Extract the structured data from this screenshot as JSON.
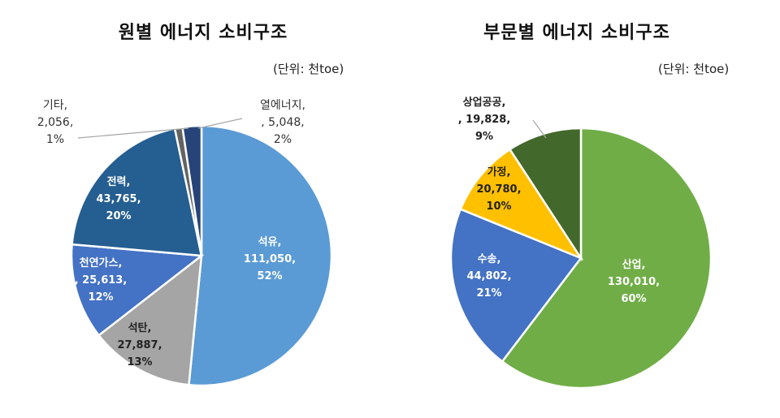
{
  "chart_data": [
    {
      "type": "pie",
      "title": "원별 에너지 소비구조",
      "unit": "(단위: 천toe)",
      "slices": [
        {
          "name": "석유",
          "value": 111050,
          "value_text": "111,050,",
          "percent_text": "52%",
          "color": "#5B9BD5"
        },
        {
          "name": "석탄",
          "value": 27887,
          "value_text": "27,887,",
          "percent_text": "13%",
          "color": "#A5A5A5"
        },
        {
          "name": "천연가스",
          "value": 25613,
          "value_text": ", 25,613,",
          "percent_text": "12%",
          "color": "#4472C4"
        },
        {
          "name": "전력",
          "value": 43765,
          "value_text": "43,765,",
          "percent_text": "20%",
          "color": "#255E91"
        },
        {
          "name": "기타",
          "value": 2056,
          "value_text": "2,056,",
          "percent_text": "1%",
          "color": "#636363"
        },
        {
          "name": "열에너지",
          "value": 5048,
          "value_text": ", 5,048,",
          "percent_text": "2%",
          "color": "#264478"
        }
      ]
    },
    {
      "type": "pie",
      "title": "부문별 에너지 소비구조",
      "unit": "(단위: 천toe)",
      "slices": [
        {
          "name": "산업",
          "value": 130010,
          "value_text": "130,010,",
          "percent_text": "60%",
          "color": "#70AD47"
        },
        {
          "name": "수송",
          "value": 44802,
          "value_text": "44,802,",
          "percent_text": "21%",
          "color": "#4472C4"
        },
        {
          "name": "가정",
          "value": 20780,
          "value_text": "20,780,",
          "percent_text": "10%",
          "color": "#FFC000"
        },
        {
          "name": "상업공공",
          "value": 19828,
          "value_text": ", 19,828,",
          "percent_text": "9%",
          "color": "#43682B"
        }
      ]
    }
  ]
}
